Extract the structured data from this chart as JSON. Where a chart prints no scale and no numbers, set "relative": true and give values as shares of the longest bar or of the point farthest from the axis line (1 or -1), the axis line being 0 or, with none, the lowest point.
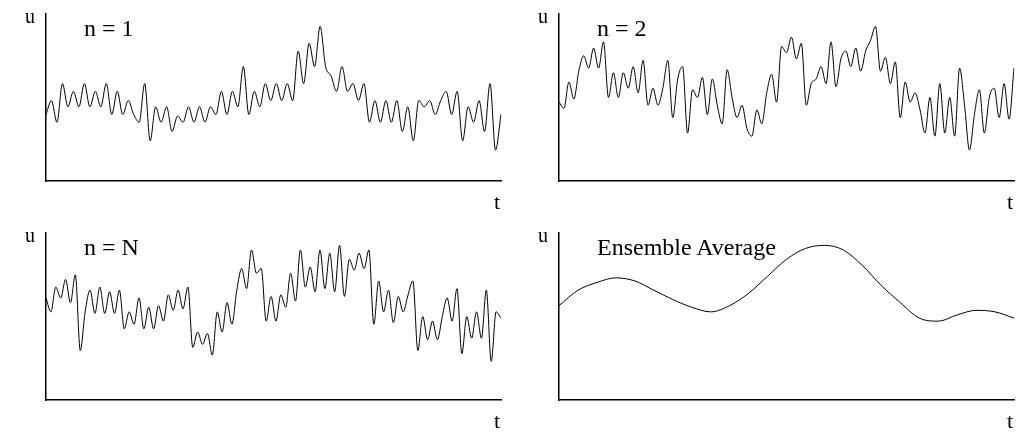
{
  "chart_data": [
    {
      "type": "line",
      "title": "n = 1",
      "xlabel": "t",
      "ylabel": "u",
      "relative": true,
      "categories": [
        null,
        null,
        null,
        null,
        null,
        null,
        null,
        null,
        null,
        null,
        null,
        null,
        null,
        null,
        null,
        null,
        null,
        null,
        null,
        null,
        null,
        null,
        null,
        null,
        null,
        null,
        null,
        null,
        null,
        null,
        null,
        null,
        null,
        null,
        null,
        null,
        null,
        null,
        null,
        null,
        null,
        null,
        null,
        null,
        null,
        null,
        null,
        null,
        null,
        null,
        null,
        null,
        null,
        null,
        null,
        null,
        null,
        null,
        null,
        null,
        null,
        null,
        null,
        null,
        null,
        null,
        null,
        null,
        null,
        null,
        null,
        null,
        null,
        null,
        null,
        null,
        null,
        null,
        null,
        null,
        null,
        null,
        null,
        null
      ],
      "series": [
        {
          "color": "#000000",
          "values": [
            0.43,
            0.52,
            0.38,
            0.63,
            0.48,
            0.58,
            0.48,
            0.63,
            0.48,
            0.58,
            0.48,
            0.63,
            0.43,
            0.58,
            0.43,
            0.52,
            0.43,
            0.38,
            0.63,
            0.26,
            0.48,
            0.38,
            0.48,
            0.32,
            0.42,
            0.38,
            0.48,
            0.38,
            0.48,
            0.38,
            0.48,
            0.43,
            0.58,
            0.43,
            0.58,
            0.48,
            0.74,
            0.43,
            0.58,
            0.48,
            0.63,
            0.52,
            0.63,
            0.52,
            0.63,
            0.52,
            0.84,
            0.63,
            0.89,
            0.74,
            1,
            0.74,
            0.68,
            0.58,
            0.74,
            0.58,
            0.63,
            0.52,
            0.63,
            0.38,
            0.52,
            0.38,
            0.52,
            0.38,
            0.52,
            0.32,
            0.48,
            0.26,
            0.52,
            0.48,
            0.52,
            0.43,
            0.52,
            0.58,
            0.43,
            0.58,
            0.26,
            0.48,
            0.38,
            0.52,
            0.32,
            0.63,
            0.2,
            0.43
          ]
        }
      ]
    },
    {
      "type": "line",
      "title": "n = 2",
      "xlabel": "t",
      "ylabel": "u",
      "relative": true,
      "categories": [
        null,
        null,
        null,
        null,
        null,
        null,
        null,
        null,
        null,
        null,
        null,
        null,
        null,
        null,
        null,
        null,
        null,
        null,
        null,
        null,
        null,
        null,
        null,
        null,
        null,
        null,
        null,
        null,
        null,
        null,
        null,
        null,
        null,
        null,
        null,
        null,
        null,
        null,
        null,
        null,
        null,
        null,
        null,
        null,
        null,
        null,
        null,
        null,
        null,
        null,
        null,
        null,
        null,
        null,
        null,
        null,
        null,
        null,
        null,
        null,
        null,
        null,
        null,
        null,
        null,
        null,
        null,
        null,
        null,
        null,
        null,
        null,
        null,
        null,
        null,
        null,
        null,
        null,
        null,
        null,
        null,
        null,
        null,
        null,
        null,
        null,
        null,
        null,
        null,
        null,
        null,
        null,
        null
      ],
      "series": [
        {
          "color": "#000000",
          "values": [
            0.51,
            0.47,
            0.64,
            0.53,
            0.71,
            0.81,
            0.73,
            0.86,
            0.73,
            0.9,
            0.54,
            0.7,
            0.54,
            0.7,
            0.6,
            0.74,
            0.57,
            0.78,
            0.49,
            0.6,
            0.49,
            0.6,
            0.78,
            0.41,
            0.66,
            0.74,
            0.31,
            0.59,
            0.54,
            0.67,
            0.43,
            0.66,
            0.49,
            0.37,
            0.72,
            0.54,
            0.41,
            0.49,
            0.34,
            0.29,
            0.46,
            0.37,
            0.57,
            0.69,
            0.51,
            0.87,
            0.83,
            0.93,
            0.79,
            0.89,
            0.49,
            0.63,
            0.66,
            0.74,
            0.63,
            0.9,
            0.61,
            0.79,
            0.84,
            0.74,
            0.86,
            0.71,
            0.84,
            0.91,
            1,
            0.71,
            0.8,
            0.63,
            0.77,
            0.41,
            0.64,
            0.51,
            0.57,
            0.46,
            0.31,
            0.54,
            0.29,
            0.63,
            0.31,
            0.54,
            0.29,
            0.73,
            0.49,
            0.2,
            0.43,
            0.59,
            0.31,
            0.54,
            0.6,
            0.41,
            0.63,
            0.4,
            0.73
          ]
        }
      ]
    },
    {
      "type": "line",
      "title": "n = N",
      "xlabel": "t",
      "ylabel": "u",
      "relative": true,
      "categories": [
        null,
        null,
        null,
        null,
        null,
        null,
        null,
        null,
        null,
        null,
        null,
        null,
        null,
        null,
        null,
        null,
        null,
        null,
        null,
        null,
        null,
        null,
        null,
        null,
        null,
        null,
        null,
        null,
        null,
        null,
        null,
        null,
        null,
        null,
        null,
        null,
        null,
        null,
        null,
        null,
        null,
        null,
        null,
        null,
        null,
        null,
        null,
        null,
        null,
        null,
        null,
        null,
        null,
        null,
        null,
        null,
        null,
        null,
        null,
        null,
        null,
        null,
        null,
        null,
        null,
        null,
        null,
        null,
        null,
        null,
        null,
        null,
        null,
        null,
        null,
        null,
        null,
        null,
        null,
        null,
        null,
        null,
        null,
        null,
        null,
        null,
        null,
        null,
        null,
        null,
        null,
        null,
        null,
        null
      ],
      "series": [
        {
          "color": "#000000",
          "values": [
            0.66,
            0.57,
            0.73,
            0.66,
            0.78,
            0.63,
            0.81,
            0.32,
            0.57,
            0.71,
            0.56,
            0.73,
            0.56,
            0.7,
            0.56,
            0.71,
            0.46,
            0.57,
            0.49,
            0.66,
            0.46,
            0.6,
            0.46,
            0.61,
            0.51,
            0.68,
            0.58,
            0.71,
            0.59,
            0.73,
            0.34,
            0.44,
            0.36,
            0.43,
            0.29,
            0.57,
            0.44,
            0.63,
            0.49,
            0.71,
            0.85,
            0.72,
            0.97,
            0.82,
            0.85,
            0.51,
            0.67,
            0.51,
            0.68,
            0.6,
            0.82,
            0.64,
            0.97,
            0.73,
            0.86,
            0.7,
            0.97,
            0.72,
            0.95,
            0.7,
            1,
            0.67,
            0.91,
            0.84,
            0.95,
            0.85,
            0.97,
            0.49,
            0.77,
            0.57,
            0.71,
            0.5,
            0.67,
            0.57,
            0.68,
            0.77,
            0.32,
            0.54,
            0.39,
            0.51,
            0.39,
            0.54,
            0.66,
            0.51,
            0.72,
            0.3,
            0.54,
            0.4,
            0.57,
            0.4,
            0.71,
            0.25,
            0.57,
            0.53
          ]
        }
      ]
    },
    {
      "type": "line",
      "title": "Ensemble Average",
      "xlabel": "t",
      "ylabel": "u",
      "relative": true,
      "categories": [
        null,
        null,
        null,
        null,
        null,
        null,
        null,
        null,
        null,
        null,
        null,
        null,
        null,
        null,
        null,
        null,
        null,
        null,
        null,
        null,
        null,
        null,
        null,
        null,
        null
      ],
      "series": [
        {
          "color": "#000000",
          "values": [
            0.61,
            0.71,
            0.76,
            0.79,
            0.77,
            0.71,
            0.65,
            0.6,
            0.57,
            0.61,
            0.69,
            0.8,
            0.91,
            0.98,
            1,
            0.97,
            0.87,
            0.74,
            0.63,
            0.53,
            0.51,
            0.55,
            0.58,
            0.57,
            0.53
          ]
        }
      ]
    }
  ]
}
